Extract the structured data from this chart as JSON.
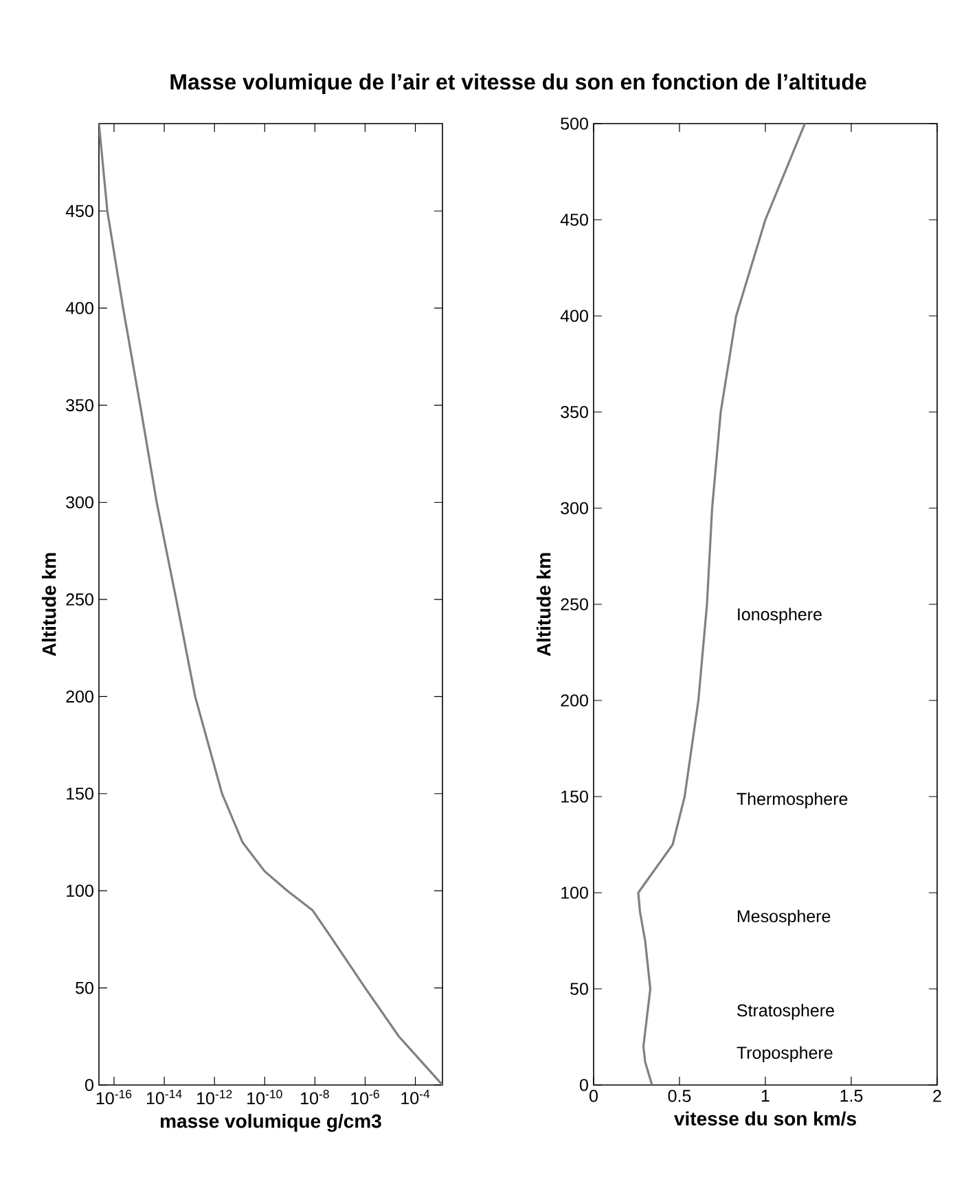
{
  "chart_data": [
    {
      "type": "line",
      "title": "Masse volumique de l’air et vitesse du son en fonction de l’altitude",
      "xlabel": "masse volumique g/cm3",
      "ylabel": "Altitude km",
      "log": "x",
      "xlim": [
        2.5e-17,
        0.0012
      ],
      "ylim": [
        0,
        495
      ],
      "xticks": [
        {
          "value": 1e-16,
          "label": "10$^{-16}$"
        },
        {
          "value": 1e-14,
          "label": "10$^{-14}$"
        },
        {
          "value": 1e-12,
          "label": "10$^{-12}$"
        },
        {
          "value": 1e-10,
          "label": "10$^{-10}$"
        },
        {
          "value": 1e-08,
          "label": "10$^{-8}$"
        },
        {
          "value": 1e-06,
          "label": "10$^{-6}$"
        },
        {
          "value": 0.0001,
          "label": "10$^{-4}$"
        }
      ],
      "yticks": [
        0,
        50,
        100,
        150,
        200,
        250,
        300,
        350,
        400,
        450
      ],
      "series": [
        {
          "color": "#808080",
          "x": [
            2.5e-17,
            5.4e-17,
            2.3e-16,
            1.1e-15,
            5e-15,
            3e-14,
            1.7e-13,
            2e-12,
            1.3e-11,
            1e-10,
            8e-10,
            8e-09,
            5e-08,
            1e-06,
            2.2e-05,
            0.0012
          ],
          "values": [
            495,
            450,
            400,
            350,
            300,
            250,
            200,
            150,
            125,
            110,
            100,
            90,
            75,
            50,
            25,
            0
          ]
        }
      ]
    },
    {
      "type": "line",
      "xlabel": "vitesse du son km/s",
      "ylabel": "Altitude km",
      "xlim": [
        0,
        2
      ],
      "ylim": [
        0,
        500
      ],
      "xticks": [
        0,
        0.5,
        1,
        1.5,
        2
      ],
      "yticks": [
        0,
        50,
        100,
        150,
        200,
        250,
        300,
        350,
        400,
        450,
        500
      ],
      "series": [
        {
          "color": "#808080",
          "x": [
            1.23,
            1.0,
            0.83,
            0.74,
            0.69,
            0.66,
            0.61,
            0.53,
            0.46,
            0.34,
            0.26,
            0.27,
            0.3,
            0.33,
            0.31,
            0.29,
            0.3,
            0.34
          ],
          "values": [
            500,
            450,
            400,
            350,
            300,
            250,
            200,
            150,
            125,
            110,
            100,
            90,
            75,
            50,
            35,
            20,
            12,
            0
          ]
        }
      ],
      "annotations": [
        "Ionosphere",
        "Thermosphere",
        "Mesosphere",
        "Stratosphere",
        "Troposphere"
      ]
    }
  ]
}
